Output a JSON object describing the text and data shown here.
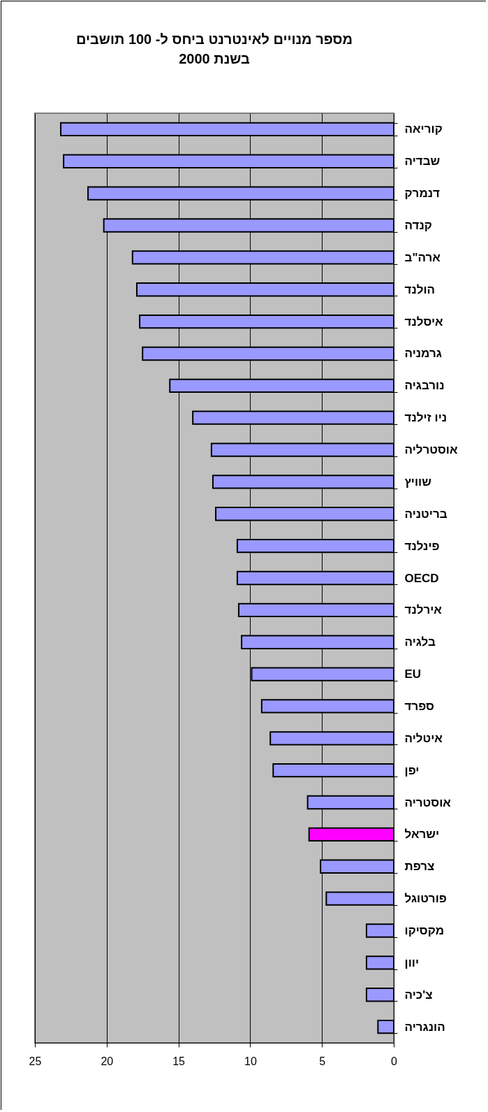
{
  "chart_data": {
    "type": "bar",
    "orientation": "horizontal",
    "title": "מספר מנויים לאינטרנט ביחס ל- 100 תושבים\nבשנת 2000",
    "categories": [
      "קוריאה",
      "שבדיה",
      "דנמרק",
      "קנדה",
      "ארה\"ב",
      "הולנד",
      "איסלנד",
      "גרמניה",
      "נורבגיה",
      "ניו זילנד",
      "אוסטרליה",
      "שוויץ",
      "בריטניה",
      "פינלנד",
      "OECD",
      "אירלנד",
      "בלגיה",
      "EU",
      "ספרד",
      "איטליה",
      "יפן",
      "אוסטריה",
      "ישראל",
      "צרפת",
      "פורטוגל",
      "מקסיקו",
      "יוון",
      "צ'כיה",
      "הונגריה"
    ],
    "values": [
      23.2,
      23.0,
      21.3,
      20.2,
      18.2,
      17.9,
      17.7,
      17.5,
      15.6,
      14.0,
      12.7,
      12.6,
      12.4,
      10.9,
      10.9,
      10.8,
      10.6,
      9.9,
      9.2,
      8.6,
      8.4,
      6.0,
      5.9,
      5.1,
      4.7,
      1.9,
      1.9,
      1.9,
      1.1
    ],
    "colors": [
      "#9999ff",
      "#9999ff",
      "#9999ff",
      "#9999ff",
      "#9999ff",
      "#9999ff",
      "#9999ff",
      "#9999ff",
      "#9999ff",
      "#9999ff",
      "#9999ff",
      "#9999ff",
      "#9999ff",
      "#9999ff",
      "#9999ff",
      "#9999ff",
      "#9999ff",
      "#9999ff",
      "#9999ff",
      "#9999ff",
      "#9999ff",
      "#9999ff",
      "#ff00ff",
      "#9999ff",
      "#9999ff",
      "#9999ff",
      "#9999ff",
      "#9999ff",
      "#9999ff"
    ],
    "xlim": [
      25,
      0
    ],
    "xticks": [
      25,
      20,
      15,
      10,
      5,
      0
    ],
    "grid": "x"
  }
}
